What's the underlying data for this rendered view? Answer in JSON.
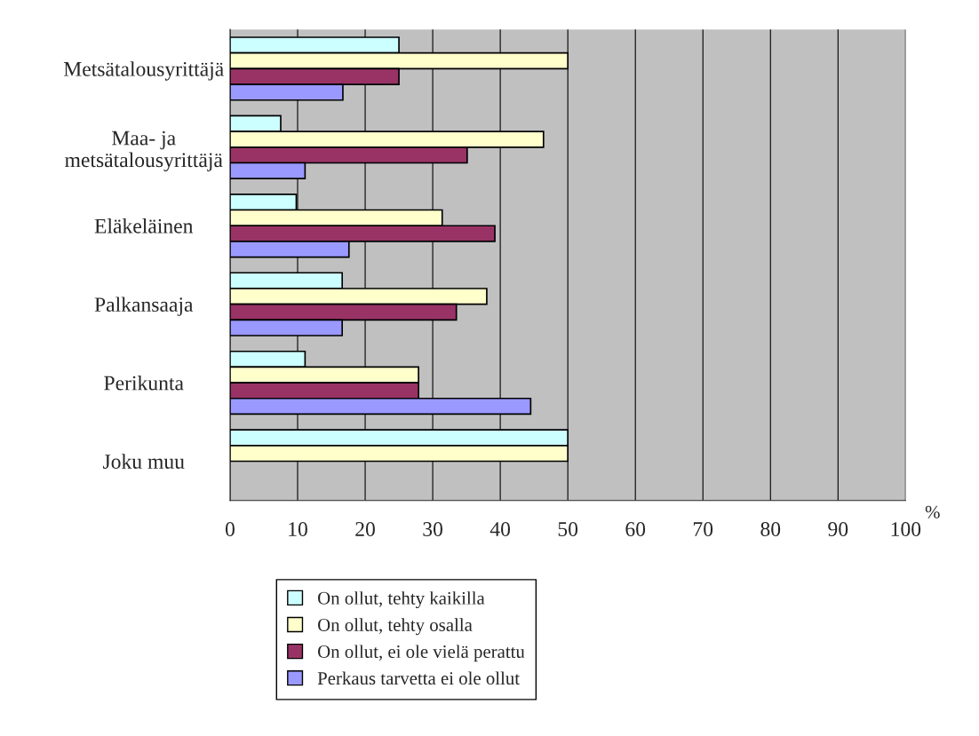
{
  "chart_data": {
    "type": "bar",
    "orientation": "horizontal",
    "xlabel": "%",
    "categories": [
      "Metsätalousyrittäjä",
      "Maa- ja\nmetsätalousyrittäjä",
      "Eläkeläinen",
      "Palkansaaja",
      "Perikunta",
      "Joku muu"
    ],
    "series": [
      {
        "name": "On ollut, tehty kaikilla",
        "color": "#ccffff",
        "values": [
          25,
          7.5,
          9.8,
          16.6,
          11.1,
          50
        ]
      },
      {
        "name": "On ollut, tehty osalla",
        "color": "#ffffcc",
        "values": [
          50,
          46.4,
          31.4,
          38,
          27.9,
          50
        ]
      },
      {
        "name": "On ollut, ei ole vielä perattu",
        "color": "#993366",
        "values": [
          25,
          35.1,
          39.2,
          33.5,
          27.9,
          null
        ]
      },
      {
        "name": "Perkaus tarvetta ei ole ollut",
        "color": "#9999ff",
        "values": [
          16.7,
          11.1,
          17.6,
          16.6,
          44.5,
          null
        ]
      }
    ],
    "xlim": [
      0,
      100
    ],
    "xticks": [
      0,
      10,
      20,
      30,
      40,
      50,
      60,
      70,
      80,
      90,
      100
    ],
    "grid": "x",
    "legend": "bottom"
  }
}
